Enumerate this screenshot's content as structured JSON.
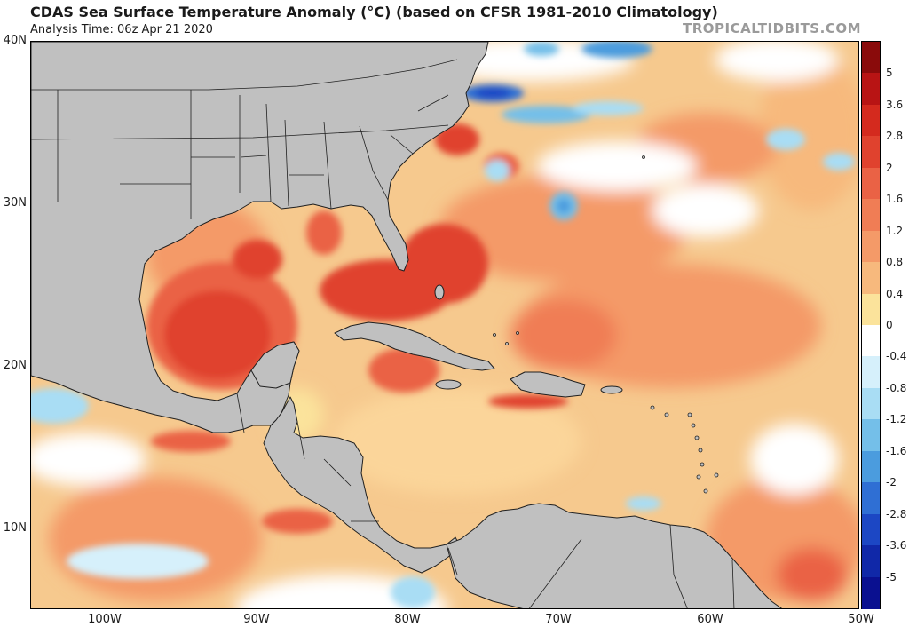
{
  "header": {
    "title": "CDAS Sea Surface Temperature Anomaly (°C) (based on CFSR 1981-2010 Climatology)",
    "subtitle": "Analysis Time: 06z Apr 21 2020",
    "credit": "TROPICALTIDBITS.COM"
  },
  "map": {
    "lat_labels": [
      "40N",
      "30N",
      "20N",
      "10N"
    ],
    "lon_labels": [
      "100W",
      "90W",
      "80W",
      "70W",
      "60W",
      "50W"
    ],
    "colors": {
      "land": "#c0c0c0",
      "border": "#202020",
      "ocean_base": "#f6c98e"
    }
  },
  "colorbar": {
    "labels": [
      "5",
      "3.6",
      "2.8",
      "2",
      "1.6",
      "1.2",
      "0.8",
      "0.4",
      "0",
      "-0.4",
      "-0.8",
      "-1.2",
      "-1.6",
      "-2",
      "-2.8",
      "-3.6",
      "-5"
    ],
    "colors": [
      "#8a0b0b",
      "#b81414",
      "#d42a1e",
      "#e0422e",
      "#ea6245",
      "#f07d55",
      "#f49a68",
      "#f7b97d",
      "#fbe39b",
      "#ffffff",
      "#d6f0fb",
      "#a9ddf4",
      "#74bfe9",
      "#4b9cde",
      "#2f6fd4",
      "#1c47c4",
      "#1028a8",
      "#0a1090"
    ]
  }
}
